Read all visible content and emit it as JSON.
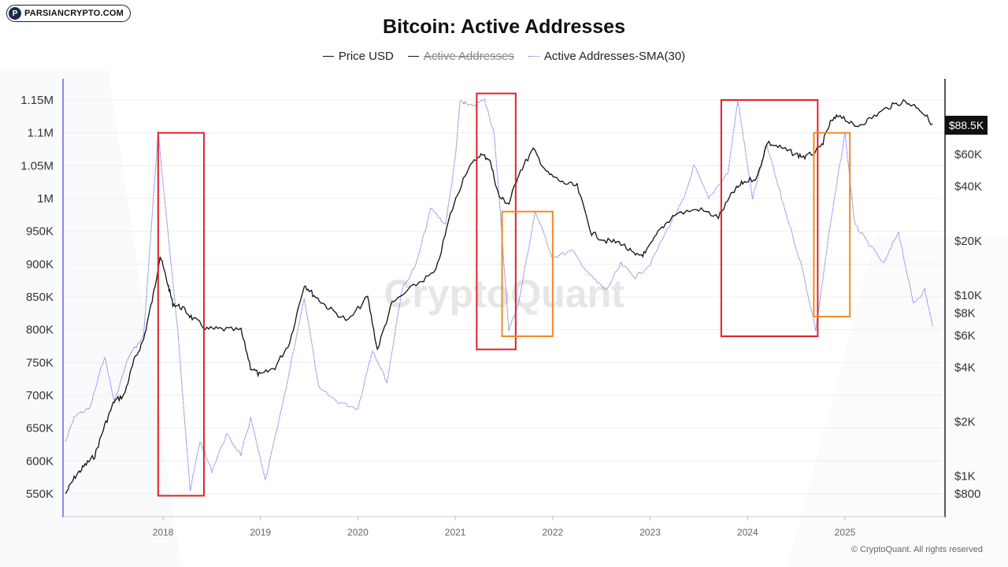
{
  "logo": {
    "text": "PARSIANCRYPTO.COM",
    "mark": "P"
  },
  "watermark": "CryptoQuant",
  "footer": "© CryptoQuant. All rights reserved",
  "price_tag": "$88.5K",
  "colors": {
    "price": "#111111",
    "sma": "#6b66e0",
    "highlight_red": "#e0212a",
    "highlight_orange": "#f08a24",
    "axis_left": "#8d86e8"
  },
  "chart_data": {
    "type": "line",
    "title": "Bitcoin: Active Addresses",
    "legend": [
      {
        "name": "Price USD",
        "style": "solid",
        "hidden": false
      },
      {
        "name": "Active Addresses",
        "style": "solid",
        "hidden": true
      },
      {
        "name": "Active Addresses-SMA(30)",
        "style": "dotted",
        "hidden": false
      }
    ],
    "x_ticks": [
      "2018",
      "2019",
      "2020",
      "2021",
      "2022",
      "2023",
      "2024",
      "2025"
    ],
    "x_range": [
      2017.0,
      2025.9
    ],
    "left_axis": {
      "ticks": [
        "550K",
        "600K",
        "650K",
        "700K",
        "750K",
        "800K",
        "850K",
        "900K",
        "950K",
        "1M",
        "1.05M",
        "1.1M",
        "1.15M"
      ],
      "values": [
        550000,
        600000,
        650000,
        700000,
        750000,
        800000,
        850000,
        900000,
        950000,
        1000000,
        1050000,
        1100000,
        1150000
      ],
      "range": [
        550000,
        1150000
      ]
    },
    "right_axis": {
      "scale": "log",
      "ticks": [
        {
          "label": "$800",
          "value": 800
        },
        {
          "label": "$1K",
          "value": 1000
        },
        {
          "label": "$2K",
          "value": 2000
        },
        {
          "label": "$4K",
          "value": 4000
        },
        {
          "label": "$6K",
          "value": 6000
        },
        {
          "label": "$8K",
          "value": 8000
        },
        {
          "label": "$10K",
          "value": 10000
        },
        {
          "label": "$20K",
          "value": 20000
        },
        {
          "label": "$40K",
          "value": 40000
        },
        {
          "label": "$60K",
          "value": 60000
        }
      ]
    },
    "series": [
      {
        "name": "Price USD",
        "axis": "right",
        "points": [
          [
            2017.0,
            800
          ],
          [
            2017.1,
            1000
          ],
          [
            2017.2,
            1150
          ],
          [
            2017.3,
            1300
          ],
          [
            2017.4,
            1900
          ],
          [
            2017.5,
            2600
          ],
          [
            2017.6,
            2800
          ],
          [
            2017.7,
            4300
          ],
          [
            2017.8,
            5700
          ],
          [
            2017.9,
            10000
          ],
          [
            2017.97,
            16500
          ],
          [
            2018.05,
            11500
          ],
          [
            2018.1,
            9000
          ],
          [
            2018.2,
            8500
          ],
          [
            2018.3,
            7500
          ],
          [
            2018.45,
            6500
          ],
          [
            2018.6,
            6500
          ],
          [
            2018.8,
            6400
          ],
          [
            2018.9,
            4000
          ],
          [
            2019.0,
            3600
          ],
          [
            2019.15,
            4000
          ],
          [
            2019.3,
            5500
          ],
          [
            2019.45,
            11500
          ],
          [
            2019.55,
            10000
          ],
          [
            2019.7,
            8500
          ],
          [
            2019.9,
            7200
          ],
          [
            2020.1,
            9800
          ],
          [
            2020.2,
            5000
          ],
          [
            2020.35,
            9000
          ],
          [
            2020.6,
            11500
          ],
          [
            2020.8,
            13500
          ],
          [
            2020.95,
            28000
          ],
          [
            2021.1,
            47000
          ],
          [
            2021.25,
            60000
          ],
          [
            2021.35,
            57000
          ],
          [
            2021.45,
            35000
          ],
          [
            2021.55,
            32000
          ],
          [
            2021.65,
            47000
          ],
          [
            2021.8,
            64000
          ],
          [
            2021.95,
            47000
          ],
          [
            2022.1,
            42000
          ],
          [
            2022.25,
            40000
          ],
          [
            2022.4,
            22000
          ],
          [
            2022.55,
            20000
          ],
          [
            2022.7,
            19500
          ],
          [
            2022.85,
            16500
          ],
          [
            2022.95,
            17000
          ],
          [
            2023.1,
            23000
          ],
          [
            2023.25,
            28000
          ],
          [
            2023.5,
            30000
          ],
          [
            2023.7,
            27000
          ],
          [
            2023.85,
            37000
          ],
          [
            2023.95,
            42000
          ],
          [
            2024.1,
            45000
          ],
          [
            2024.2,
            70000
          ],
          [
            2024.35,
            65000
          ],
          [
            2024.5,
            60000
          ],
          [
            2024.6,
            58000
          ],
          [
            2024.75,
            65000
          ],
          [
            2024.85,
            90000
          ],
          [
            2024.95,
            100000
          ],
          [
            2025.1,
            85000
          ],
          [
            2025.25,
            94000
          ],
          [
            2025.45,
            110000
          ],
          [
            2025.6,
            118000
          ],
          [
            2025.75,
            110000
          ],
          [
            2025.9,
            88500
          ]
        ]
      },
      {
        "name": "Active Addresses-SMA(30)",
        "axis": "left",
        "points": [
          [
            2017.0,
            630000
          ],
          [
            2017.1,
            670000
          ],
          [
            2017.25,
            680000
          ],
          [
            2017.4,
            760000
          ],
          [
            2017.5,
            690000
          ],
          [
            2017.65,
            760000
          ],
          [
            2017.8,
            790000
          ],
          [
            2017.95,
            1100000
          ],
          [
            2018.05,
            950000
          ],
          [
            2018.15,
            800000
          ],
          [
            2018.28,
            555000
          ],
          [
            2018.38,
            630000
          ],
          [
            2018.5,
            585000
          ],
          [
            2018.65,
            640000
          ],
          [
            2018.8,
            610000
          ],
          [
            2018.9,
            665000
          ],
          [
            2019.05,
            570000
          ],
          [
            2019.25,
            700000
          ],
          [
            2019.45,
            850000
          ],
          [
            2019.6,
            710000
          ],
          [
            2019.8,
            690000
          ],
          [
            2020.0,
            680000
          ],
          [
            2020.15,
            770000
          ],
          [
            2020.3,
            720000
          ],
          [
            2020.45,
            860000
          ],
          [
            2020.6,
            900000
          ],
          [
            2020.75,
            985000
          ],
          [
            2020.9,
            960000
          ],
          [
            2021.0,
            1060000
          ],
          [
            2021.05,
            1150000
          ],
          [
            2021.15,
            1140000
          ],
          [
            2021.3,
            1150000
          ],
          [
            2021.4,
            1100000
          ],
          [
            2021.5,
            900000
          ],
          [
            2021.55,
            800000
          ],
          [
            2021.65,
            840000
          ],
          [
            2021.82,
            980000
          ],
          [
            2022.0,
            910000
          ],
          [
            2022.2,
            920000
          ],
          [
            2022.4,
            880000
          ],
          [
            2022.55,
            860000
          ],
          [
            2022.7,
            900000
          ],
          [
            2022.85,
            880000
          ],
          [
            2023.0,
            900000
          ],
          [
            2023.2,
            960000
          ],
          [
            2023.35,
            1000000
          ],
          [
            2023.45,
            1050000
          ],
          [
            2023.6,
            1000000
          ],
          [
            2023.8,
            1040000
          ],
          [
            2023.9,
            1150000
          ],
          [
            2024.05,
            1000000
          ],
          [
            2024.2,
            1080000
          ],
          [
            2024.35,
            1000000
          ],
          [
            2024.55,
            900000
          ],
          [
            2024.7,
            800000
          ],
          [
            2024.85,
            960000
          ],
          [
            2025.0,
            1100000
          ],
          [
            2025.1,
            960000
          ],
          [
            2025.2,
            940000
          ],
          [
            2025.4,
            900000
          ],
          [
            2025.55,
            950000
          ],
          [
            2025.7,
            840000
          ],
          [
            2025.82,
            860000
          ],
          [
            2025.9,
            805000
          ]
        ]
      }
    ],
    "highlights": [
      {
        "color": "red",
        "x": [
          2017.95,
          2018.42
        ],
        "y": [
          547000,
          1100000
        ]
      },
      {
        "color": "red",
        "x": [
          2021.22,
          2021.62
        ],
        "y": [
          770000,
          1160000
        ]
      },
      {
        "color": "orange",
        "x": [
          2021.48,
          2022.0
        ],
        "y": [
          790000,
          980000
        ]
      },
      {
        "color": "red",
        "x": [
          2023.73,
          2024.72
        ],
        "y": [
          790000,
          1150000
        ]
      },
      {
        "color": "orange",
        "x": [
          2024.68,
          2025.05
        ],
        "y": [
          820000,
          1100000
        ]
      }
    ],
    "grid": true
  }
}
